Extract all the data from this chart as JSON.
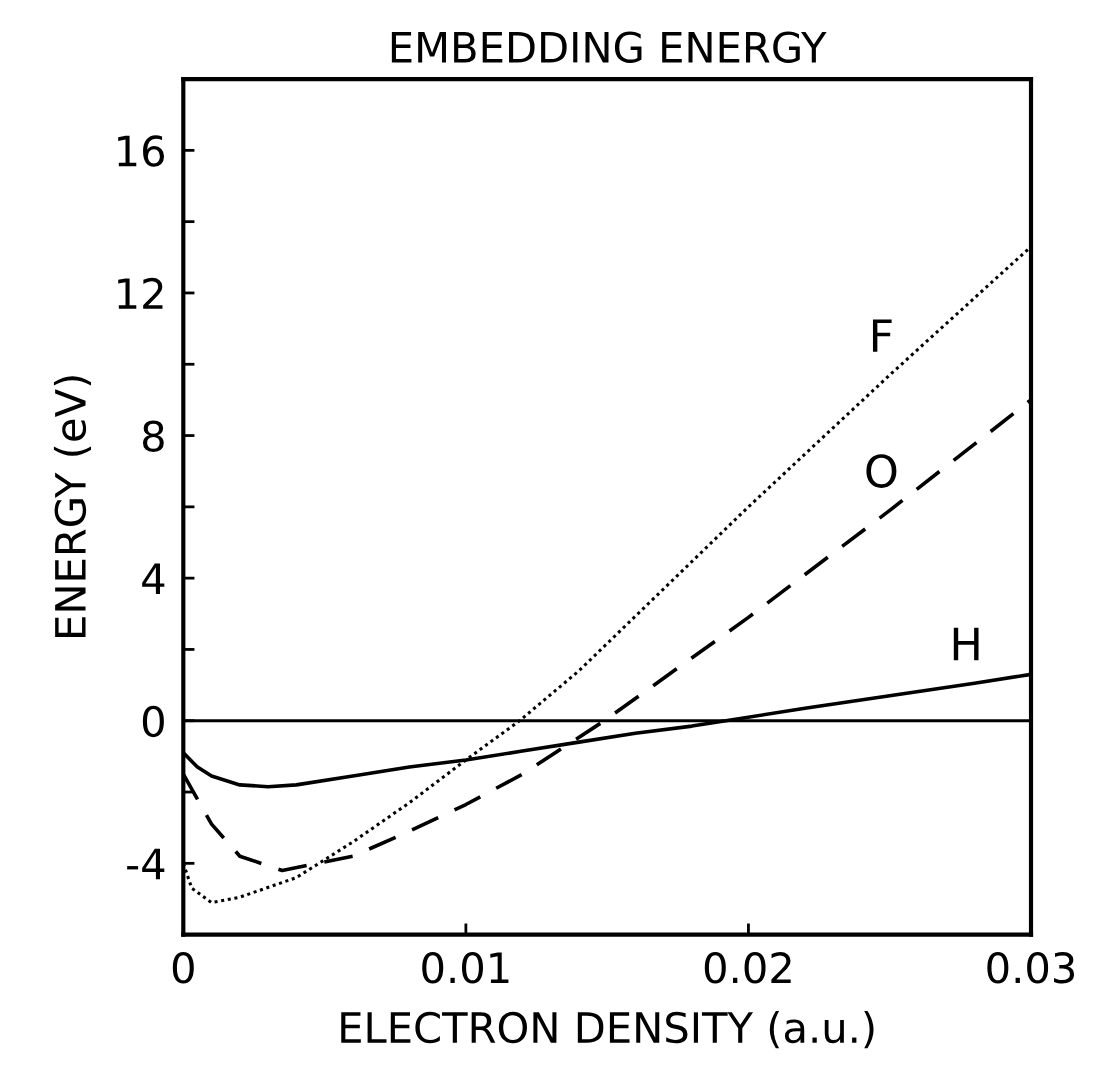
{
  "chart_data": {
    "type": "line",
    "title": "EMBEDDING ENERGY",
    "xlabel": "ELECTRON DENSITY (a.u.)",
    "ylabel": "ENERGY (eV)",
    "xlim": [
      0,
      0.03
    ],
    "xticks": [
      {
        "value": 0,
        "label": "0"
      },
      0.01,
      0.02,
      0.03
    ],
    "ylim": [
      -6,
      18
    ],
    "yticks": [
      {
        "value": -6,
        "label": null
      },
      -4,
      {
        "value": -2,
        "label": null
      },
      0,
      {
        "value": 2,
        "label": null
      },
      4,
      {
        "value": 6,
        "label": null
      },
      8,
      {
        "value": 10,
        "label": null
      },
      12,
      {
        "value": 14,
        "label": null
      },
      16
    ],
    "grid": false,
    "legend": false,
    "ref_lines": [
      {
        "axis": "y",
        "value": 0,
        "color": "#000000",
        "line_style": "solid"
      }
    ],
    "series": [
      {
        "name": "F",
        "color": "#000000",
        "line_style": "dotted",
        "x": [
          0,
          0.0003,
          0.001,
          0.002,
          0.004,
          0.006,
          0.008,
          0.01,
          0.0119,
          0.014,
          0.017,
          0.02,
          0.025,
          0.03
        ],
        "values": [
          -4.0,
          -4.7,
          -5.1,
          -4.95,
          -4.4,
          -3.4,
          -2.3,
          -1.1,
          0,
          1.4,
          3.7,
          6.0,
          9.7,
          13.3
        ]
      },
      {
        "name": "O",
        "color": "#000000",
        "line_style": "dashed",
        "x": [
          0,
          0.001,
          0.002,
          0.0035,
          0.006,
          0.008,
          0.01,
          0.012,
          0.0149,
          0.02,
          0.025,
          0.03
        ],
        "values": [
          -1.5,
          -2.9,
          -3.8,
          -4.2,
          -3.8,
          -3.1,
          -2.35,
          -1.5,
          0,
          2.9,
          5.9,
          9.0
        ]
      },
      {
        "name": "H",
        "color": "#000000",
        "line_style": "solid",
        "x": [
          0,
          0.0005,
          0.001,
          0.002,
          0.003,
          0.004,
          0.006,
          0.008,
          0.01,
          0.012,
          0.014,
          0.016,
          0.018,
          0.0192,
          0.022,
          0.025,
          0.028,
          0.03
        ],
        "values": [
          -0.9,
          -1.3,
          -1.55,
          -1.8,
          -1.85,
          -1.8,
          -1.55,
          -1.3,
          -1.1,
          -0.85,
          -0.6,
          -0.35,
          -0.15,
          0,
          0.35,
          0.7,
          1.05,
          1.3
        ]
      }
    ]
  }
}
